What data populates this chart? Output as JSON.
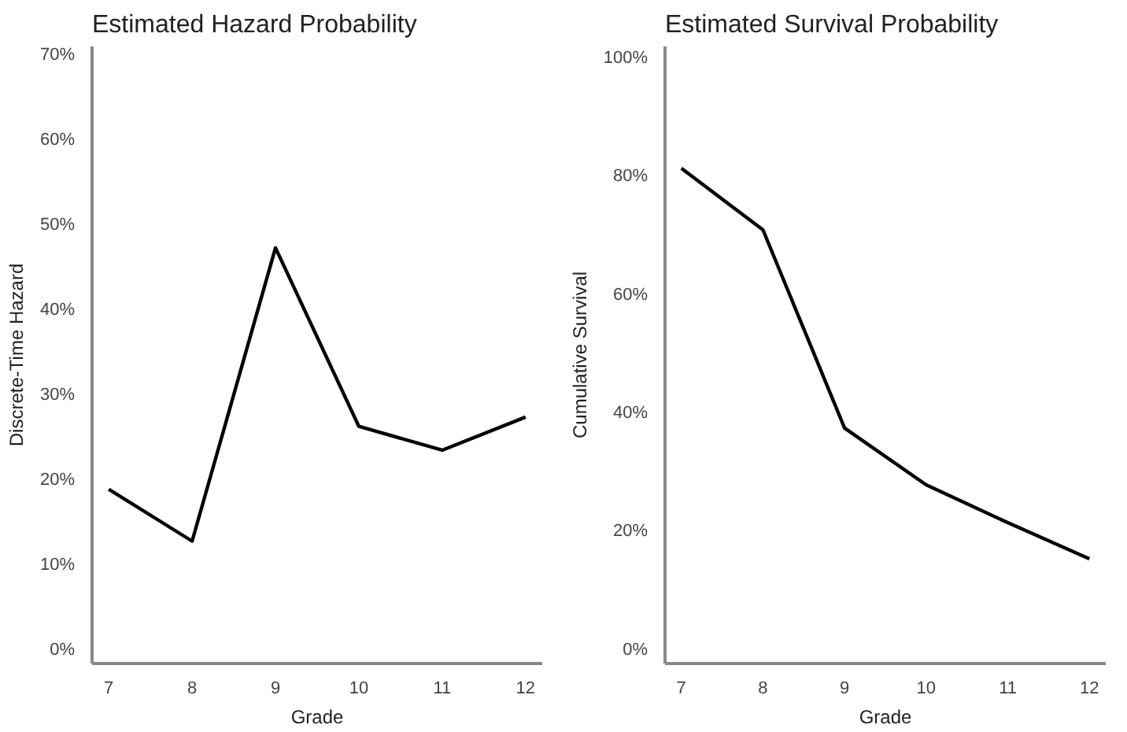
{
  "chart_data": [
    {
      "type": "line",
      "title": "Estimated Hazard Probability",
      "xlabel": "Grade",
      "ylabel": "Discrete-Time Hazard",
      "x": [
        7,
        8,
        9,
        10,
        11,
        12
      ],
      "xlim": [
        6.8,
        12.2
      ],
      "xticks": [
        7,
        8,
        9,
        10,
        11,
        12
      ],
      "ylim": [
        -1.6,
        71
      ],
      "yticks": [
        {
          "value": 0,
          "label": "0%"
        },
        {
          "value": 10,
          "label": "10%"
        },
        {
          "value": 20,
          "label": "20%"
        },
        {
          "value": 30,
          "label": "30%"
        },
        {
          "value": 40,
          "label": "40%"
        },
        {
          "value": 50,
          "label": "50%"
        },
        {
          "value": 60,
          "label": "60%"
        },
        {
          "value": 70,
          "label": "70%"
        }
      ],
      "grid": false,
      "marker": "none",
      "line_style": "solid",
      "series": [
        {
          "color": "#000000",
          "values": [
            18.9,
            12.8,
            47.3,
            26.3,
            23.5,
            27.4
          ]
        }
      ]
    },
    {
      "type": "line",
      "title": "Estimated Survival Probability",
      "xlabel": "Grade",
      "ylabel": "Cumulative Survival",
      "x": [
        7,
        8,
        9,
        10,
        11,
        12
      ],
      "xlim": [
        6.8,
        12.2
      ],
      "xticks": [
        7,
        8,
        9,
        10,
        11,
        12
      ],
      "ylim": [
        -2.3,
        102
      ],
      "yticks": [
        {
          "value": 0,
          "label": "0%"
        },
        {
          "value": 20,
          "label": "20%"
        },
        {
          "value": 40,
          "label": "40%"
        },
        {
          "value": 60,
          "label": "60%"
        },
        {
          "value": 80,
          "label": "80%"
        },
        {
          "value": 100,
          "label": "100%"
        }
      ],
      "grid": false,
      "marker": "none",
      "line_style": "solid",
      "series": [
        {
          "color": "#000000",
          "values": [
            81.4,
            71.0,
            37.5,
            27.9,
            21.5,
            15.4
          ]
        }
      ]
    }
  ]
}
